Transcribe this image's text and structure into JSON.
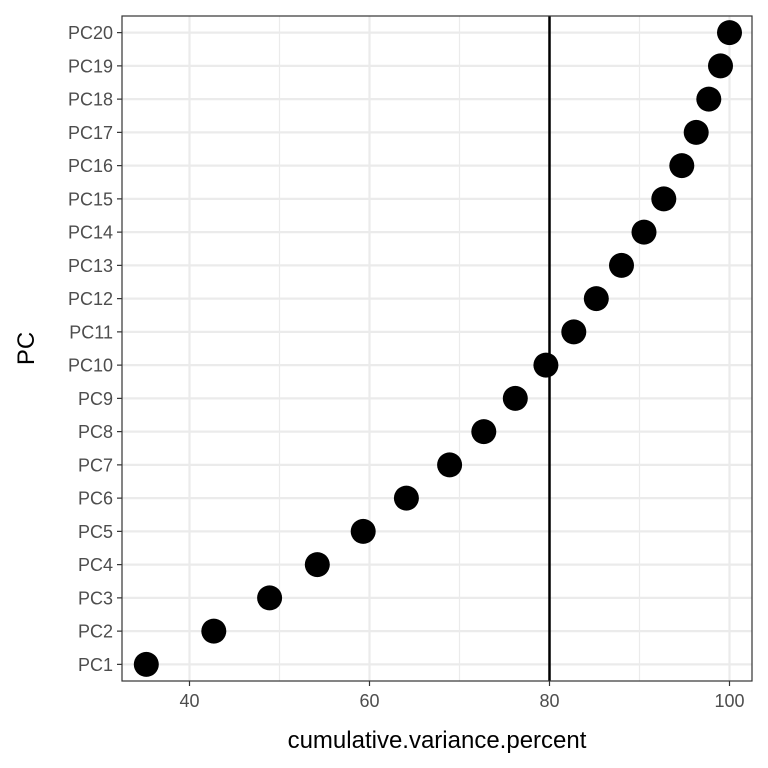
{
  "chart_data": {
    "type": "scatter",
    "xlabel": "cumulative.variance.percent",
    "ylabel": "PC",
    "xlim": [
      32.5,
      102.5
    ],
    "x_ticks": [
      40,
      60,
      80,
      100
    ],
    "grid": true,
    "reference_line": {
      "orientation": "vertical",
      "x": 80
    },
    "categories": [
      "PC1",
      "PC2",
      "PC3",
      "PC4",
      "PC5",
      "PC6",
      "PC7",
      "PC8",
      "PC9",
      "PC10",
      "PC11",
      "PC12",
      "PC13",
      "PC14",
      "PC15",
      "PC16",
      "PC17",
      "PC18",
      "PC19",
      "PC20"
    ],
    "values": [
      35.2,
      42.7,
      48.9,
      54.2,
      59.3,
      64.1,
      68.9,
      72.7,
      76.2,
      79.6,
      82.7,
      85.2,
      88.0,
      90.5,
      92.7,
      94.7,
      96.3,
      97.7,
      99.0,
      100.0
    ],
    "colors": {
      "point": "#000000",
      "line": "#000000",
      "grid": "#ebebeb",
      "panel_border": "#333333"
    }
  }
}
